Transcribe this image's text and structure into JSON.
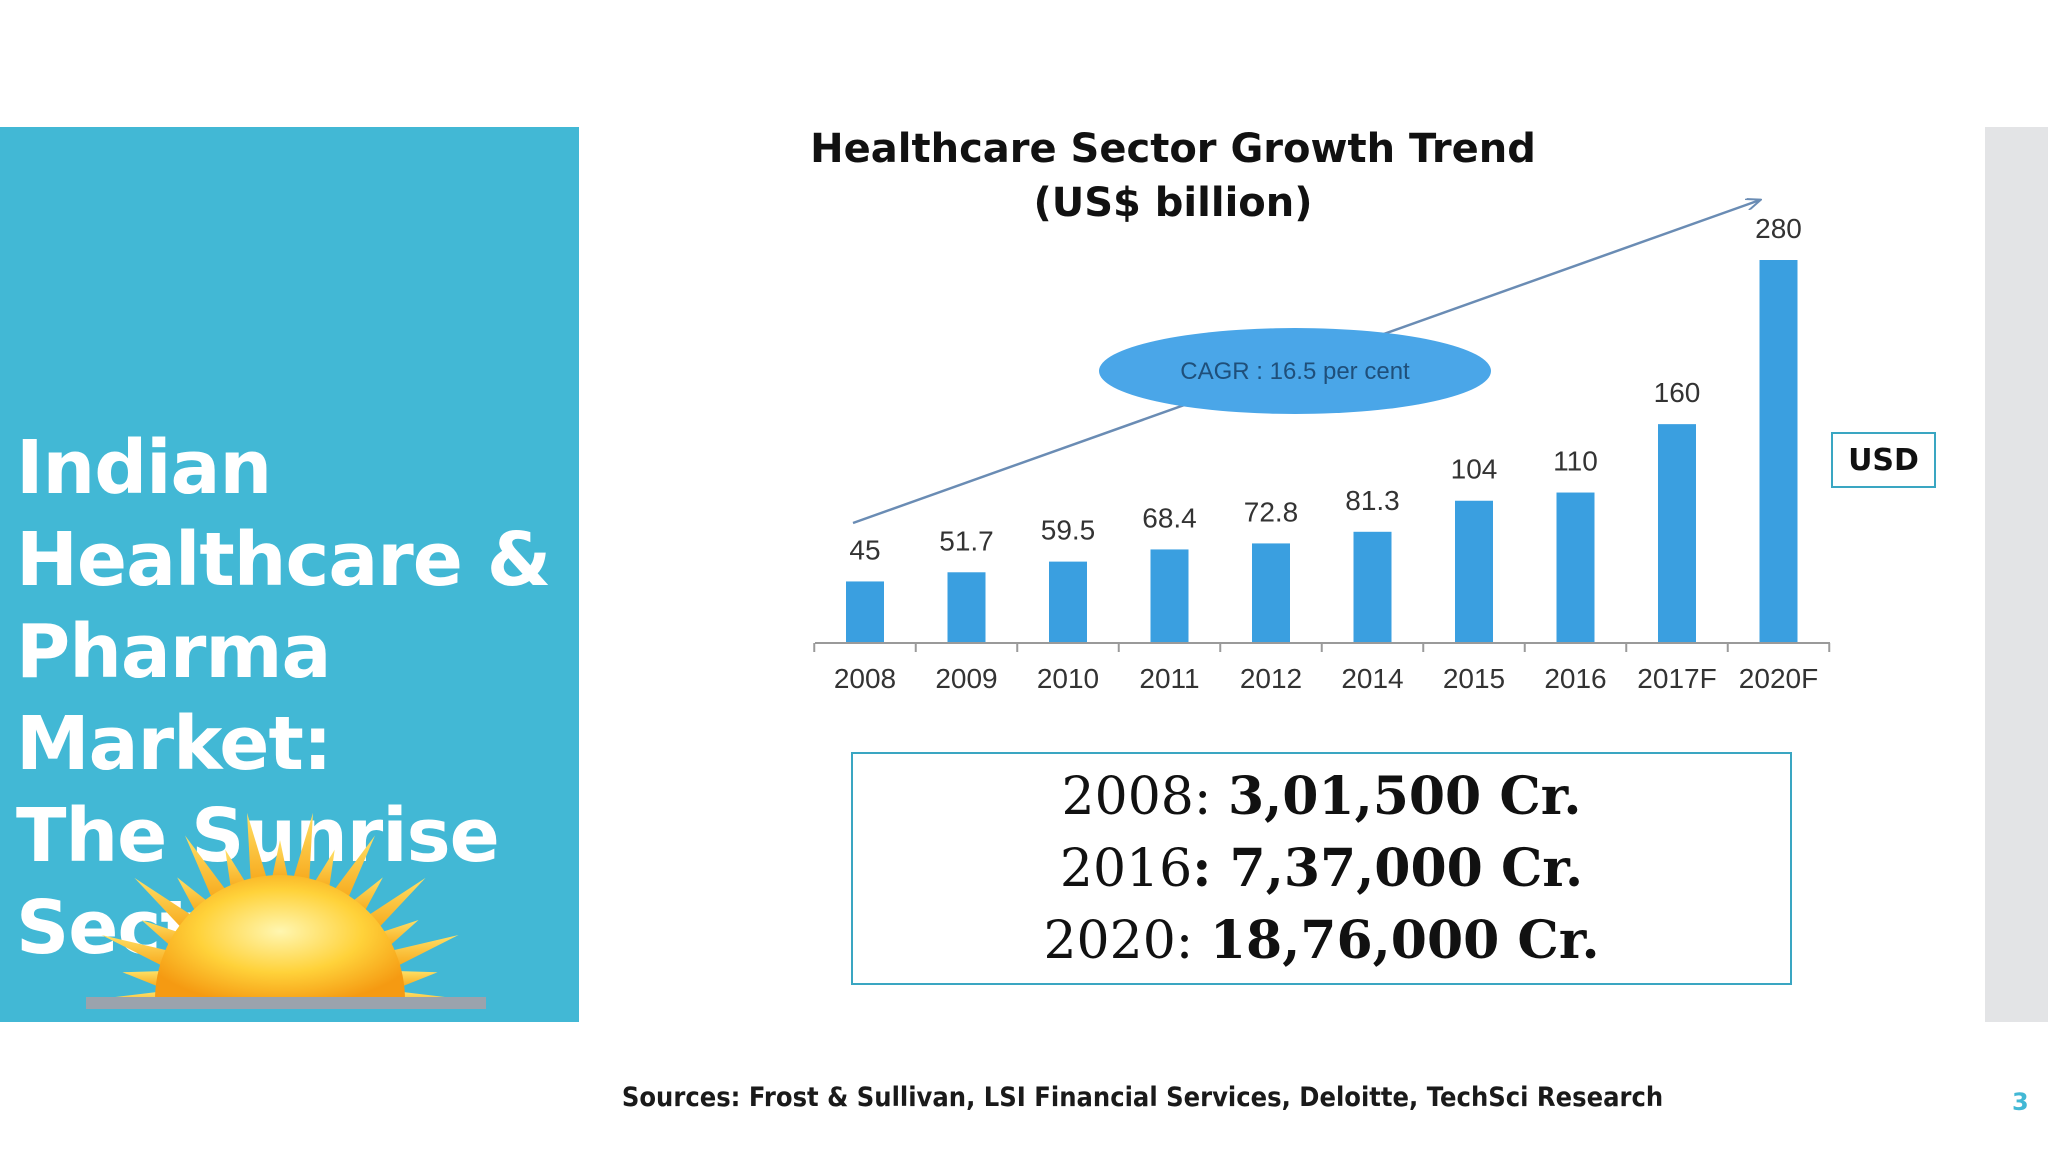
{
  "slide": {
    "title_lines": [
      "Indian",
      "Healthcare &",
      "Pharma",
      "Market:",
      "The Sunrise",
      "Sector"
    ],
    "usd_label": "USD",
    "conversions": [
      {
        "year": "2008: ",
        "value": "3,01,500",
        "unit": " Cr."
      },
      {
        "year": "2016",
        "value": ": 7,37,000",
        "unit": " Cr."
      },
      {
        "year": "2020: ",
        "value": "18,76,000",
        "unit": " Cr."
      }
    ],
    "sources": "Sources: Frost & Sullivan, LSI Financial Services, Deloitte, TechSci Research",
    "page_number": "3"
  },
  "colors": {
    "panel": "#42b8d5",
    "bar": "#3a9fe0",
    "cagr_ellipse": "#4aa6e8",
    "arrow": "#6a8cb4",
    "box_border": "#3aa6c2"
  },
  "chart_data": {
    "type": "bar",
    "title": "Healthcare Sector Growth Trend",
    "subtitle": "(US$ billion)",
    "categories": [
      "2008",
      "2009",
      "2010",
      "2011",
      "2012",
      "2014",
      "2015",
      "2016",
      "2017F",
      "2020F"
    ],
    "values": [
      45,
      51.7,
      59.5,
      68.4,
      72.8,
      81.3,
      104,
      110,
      160,
      280
    ],
    "value_labels": [
      "45",
      "51.7",
      "59.5",
      "68.4",
      "72.8",
      "81.3",
      "104",
      "110",
      "160",
      "280"
    ],
    "annotation": "CAGR : 16.5 per cent",
    "ylim": [
      0,
      280
    ],
    "grid": false,
    "legend": "none"
  }
}
